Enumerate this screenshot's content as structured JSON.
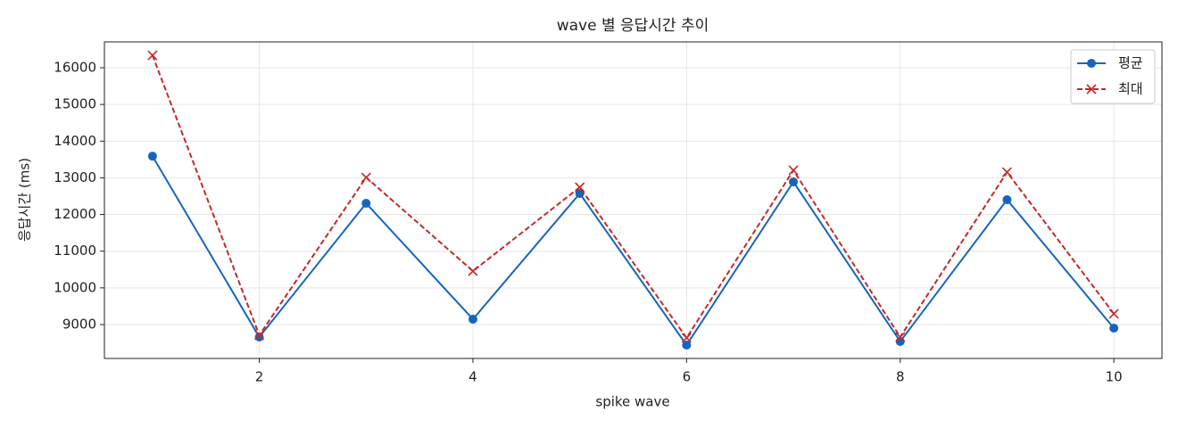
{
  "chart_data": {
    "type": "line",
    "title": "wave 별 응답시간 추이",
    "x_label": "spike wave",
    "y_label": "응답시간 (ms)",
    "x": [
      1,
      2,
      3,
      4,
      5,
      6,
      7,
      8,
      9,
      10
    ],
    "series": [
      {
        "name": "평균",
        "color": "#1565c0",
        "marker": "o",
        "dash": false,
        "values": [
          13590,
          8660,
          12305,
          9146,
          12573,
          8441,
          12889,
          8538,
          12403,
          8903
        ]
      },
      {
        "name": "최대",
        "color": "#c62828",
        "marker": "x",
        "dash": true,
        "values": [
          16340,
          8709,
          13010,
          10458,
          12743,
          8636,
          13205,
          8660,
          13156,
          9292
        ]
      }
    ],
    "xlim": [
      0.55,
      10.45
    ],
    "ylim": [
      8076,
      16705
    ],
    "xticks": [
      2,
      4,
      6,
      8,
      10
    ],
    "yticks": [
      9000,
      10000,
      11000,
      12000,
      13000,
      14000,
      15000,
      16000
    ],
    "grid": true,
    "legend": "upper right"
  }
}
